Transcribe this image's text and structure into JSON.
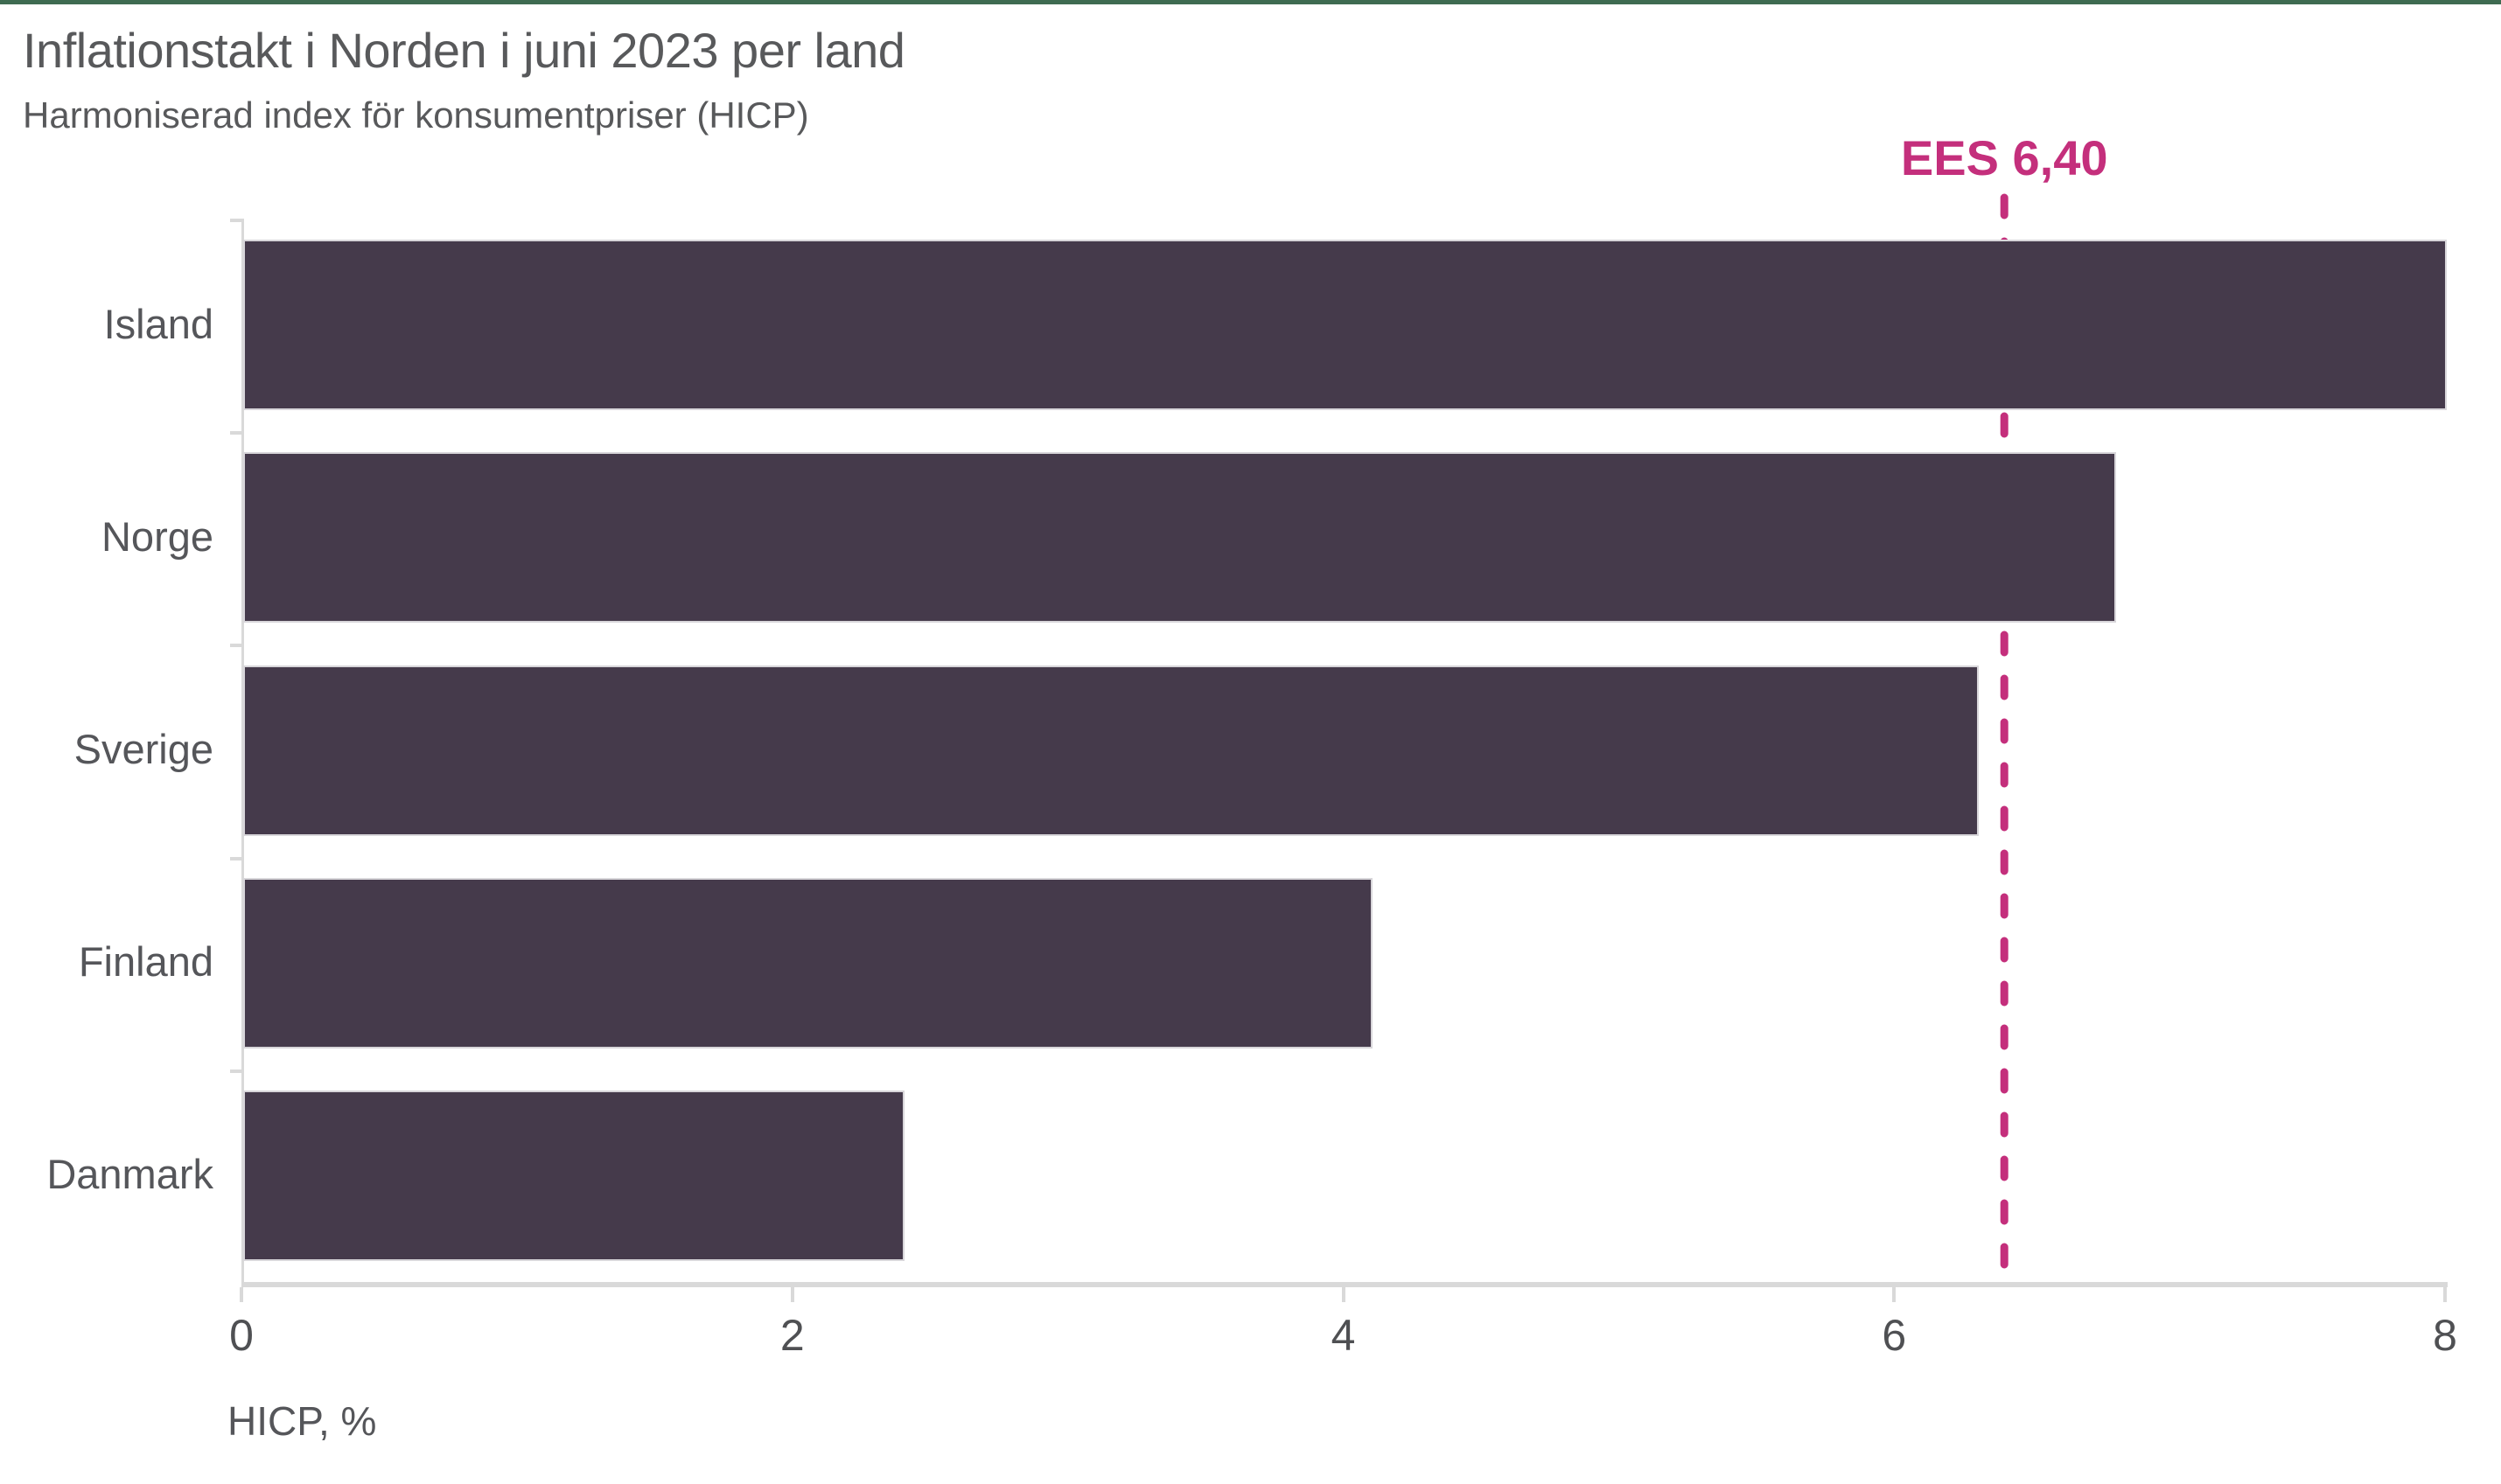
{
  "page": {
    "title": "Inflationstakt i Norden i juni 2023 per land",
    "subtitle": "Harmoniserad index för konsumentpriser (HICP)"
  },
  "chart_data": {
    "type": "bar",
    "orientation": "horizontal",
    "title": "Inflationstakt i Norden i juni 2023 per land",
    "subtitle": "Harmoniserad index för konsumentpriser (HICP)",
    "categories": [
      "Island",
      "Norge",
      "Sverige",
      "Finland",
      "Danmark"
    ],
    "values": [
      8.0,
      6.8,
      6.3,
      4.1,
      2.4
    ],
    "series": [
      {
        "name": "HICP",
        "values": [
          8.0,
          6.8,
          6.3,
          4.1,
          2.4
        ]
      }
    ],
    "xlabel": "HICP, %",
    "ylabel": "",
    "xlim": [
      0,
      8
    ],
    "xticks": [
      0,
      2,
      4,
      6,
      8
    ],
    "xtick_labels": [
      "0",
      "2",
      "4",
      "6",
      "8"
    ],
    "grid": false,
    "legend": "none",
    "reference_line": {
      "label": "EES 6,40",
      "value": 6.4,
      "style": "dashed"
    }
  },
  "colors": {
    "top_border": "#3E6B51",
    "bar": "#453A4B",
    "reference": "#C42F7C",
    "axis": "#D9D9D9",
    "title_text": "#58595B",
    "label_text": "#55565A"
  }
}
